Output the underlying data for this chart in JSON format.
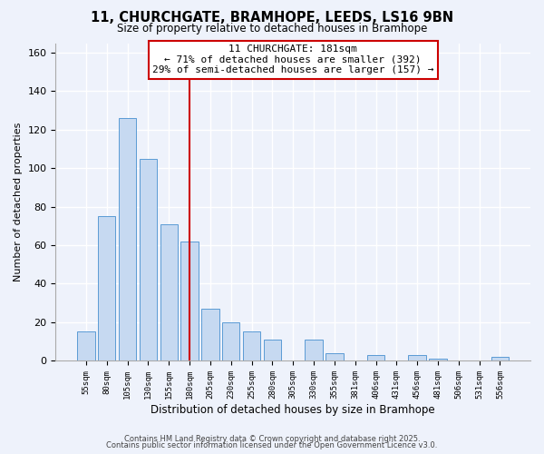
{
  "title1": "11, CHURCHGATE, BRAMHOPE, LEEDS, LS16 9BN",
  "title2": "Size of property relative to detached houses in Bramhope",
  "xlabel": "Distribution of detached houses by size in Bramhope",
  "ylabel": "Number of detached properties",
  "bar_labels": [
    "55sqm",
    "80sqm",
    "105sqm",
    "130sqm",
    "155sqm",
    "180sqm",
    "205sqm",
    "230sqm",
    "255sqm",
    "280sqm",
    "305sqm",
    "330sqm",
    "355sqm",
    "381sqm",
    "406sqm",
    "431sqm",
    "456sqm",
    "481sqm",
    "506sqm",
    "531sqm",
    "556sqm"
  ],
  "bar_values": [
    15,
    75,
    126,
    105,
    71,
    62,
    27,
    20,
    15,
    11,
    0,
    11,
    4,
    0,
    3,
    0,
    3,
    1,
    0,
    0,
    2
  ],
  "bar_color": "#c6d9f1",
  "bar_edge_color": "#5b9bd5",
  "highlight_index": 5,
  "highlight_line_color": "#cc0000",
  "annotation_title": "11 CHURCHGATE: 181sqm",
  "annotation_line1": "← 71% of detached houses are smaller (392)",
  "annotation_line2": "29% of semi-detached houses are larger (157) →",
  "annotation_box_color": "#ffffff",
  "annotation_box_edge": "#cc0000",
  "ylim": [
    0,
    165
  ],
  "yticks": [
    0,
    20,
    40,
    60,
    80,
    100,
    120,
    140,
    160
  ],
  "footer1": "Contains HM Land Registry data © Crown copyright and database right 2025.",
  "footer2": "Contains public sector information licensed under the Open Government Licence v3.0.",
  "background_color": "#eef2fb",
  "grid_color": "#ffffff",
  "spine_color": "#aaaaaa"
}
